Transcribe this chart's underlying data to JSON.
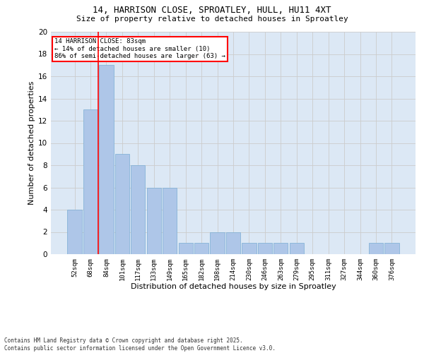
{
  "title_line1": "14, HARRISON CLOSE, SPROATLEY, HULL, HU11 4XT",
  "title_line2": "Size of property relative to detached houses in Sproatley",
  "xlabel": "Distribution of detached houses by size in Sproatley",
  "ylabel": "Number of detached properties",
  "footnote_line1": "Contains HM Land Registry data © Crown copyright and database right 2025.",
  "footnote_line2": "Contains public sector information licensed under the Open Government Licence v3.0.",
  "categories": [
    "52sqm",
    "68sqm",
    "84sqm",
    "101sqm",
    "117sqm",
    "133sqm",
    "149sqm",
    "165sqm",
    "182sqm",
    "198sqm",
    "214sqm",
    "230sqm",
    "246sqm",
    "263sqm",
    "279sqm",
    "295sqm",
    "311sqm",
    "327sqm",
    "344sqm",
    "360sqm",
    "376sqm"
  ],
  "values": [
    4,
    13,
    17,
    9,
    8,
    6,
    6,
    1,
    1,
    2,
    2,
    1,
    1,
    1,
    1,
    0,
    0,
    0,
    0,
    1,
    1
  ],
  "bar_color": "#aec6e8",
  "bar_edge_color": "#7aadd4",
  "grid_color": "#cccccc",
  "bg_color": "#dce8f5",
  "annotation_text_line1": "14 HARRISON CLOSE: 83sqm",
  "annotation_text_line2": "← 14% of detached houses are smaller (10)",
  "annotation_text_line3": "86% of semi-detached houses are larger (63) →",
  "ylim": [
    0,
    20
  ],
  "yticks": [
    0,
    2,
    4,
    6,
    8,
    10,
    12,
    14,
    16,
    18,
    20
  ]
}
